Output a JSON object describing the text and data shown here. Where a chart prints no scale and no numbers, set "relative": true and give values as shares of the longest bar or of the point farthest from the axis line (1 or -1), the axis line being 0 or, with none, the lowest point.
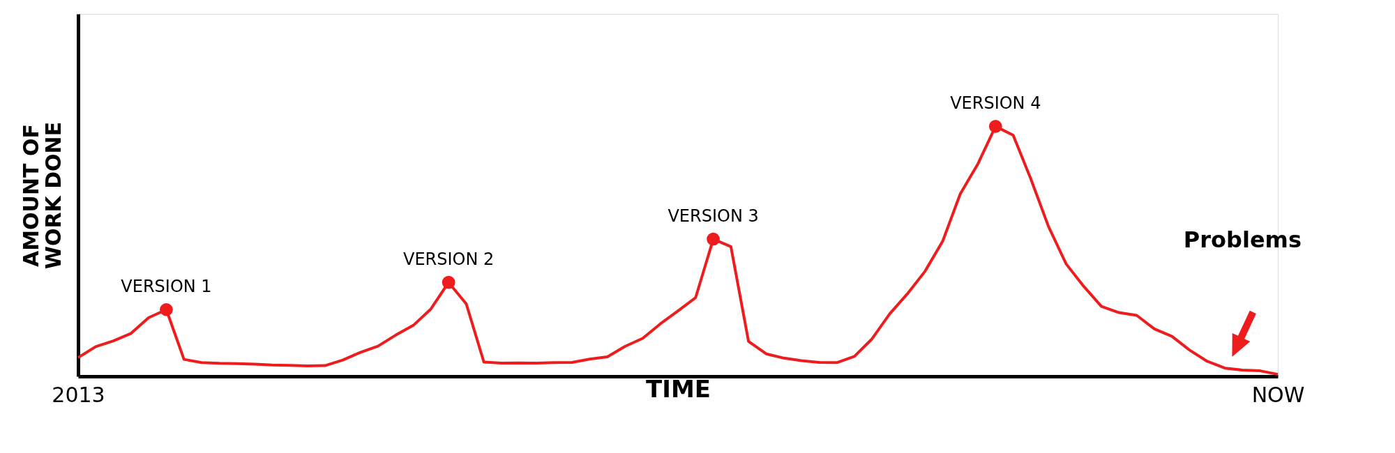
{
  "chart_data": {
    "type": "line",
    "relative": true,
    "xlabel": "TIME",
    "ylabel": "AMOUNT OF WORK DONE",
    "categories": [
      "2013",
      null,
      null,
      null,
      null,
      null,
      null,
      null,
      null,
      null,
      null,
      null,
      null,
      null,
      null,
      null,
      null,
      null,
      null,
      null,
      null,
      null,
      null,
      null,
      null,
      null,
      null,
      null,
      null,
      null,
      null,
      null,
      null,
      null,
      null,
      null,
      null,
      null,
      null,
      null,
      null,
      null,
      null,
      null,
      null,
      null,
      null,
      null,
      null,
      null,
      null,
      null,
      null,
      null,
      null,
      null,
      null,
      null,
      null,
      null,
      null,
      null,
      null,
      null,
      null,
      null,
      null,
      null,
      "NOW"
    ],
    "line_style": "solid",
    "series": [
      {
        "type": "line",
        "marker": "none",
        "color": "#ee1c1c",
        "values": [
          0.075,
          0.119,
          0.142,
          0.172,
          0.235,
          0.267,
          0.068,
          0.055,
          0.052,
          0.051,
          0.049,
          0.045,
          0.044,
          0.042,
          0.043,
          0.065,
          0.096,
          0.121,
          0.165,
          0.204,
          0.27,
          0.376,
          0.29,
          0.057,
          0.053,
          0.054,
          0.053,
          0.055,
          0.056,
          0.069,
          0.078,
          0.12,
          0.152,
          0.21,
          0.262,
          0.315,
          0.549,
          0.519,
          0.14,
          0.09,
          0.073,
          0.063,
          0.056,
          0.055,
          0.08,
          0.15,
          0.25,
          0.33,
          0.42,
          0.54,
          0.73,
          0.85,
          1.0,
          0.965,
          0.79,
          0.6,
          0.45,
          0.36,
          0.28,
          0.255,
          0.244,
          0.19,
          0.16,
          0.105,
          0.06,
          0.033,
          0.025,
          0.022,
          0.008
        ]
      },
      {
        "type": "scatter",
        "marker": "circle",
        "color": "#ee1c1c",
        "values": [
          null,
          null,
          null,
          null,
          null,
          0.267,
          null,
          null,
          null,
          null,
          null,
          null,
          null,
          null,
          null,
          null,
          null,
          null,
          null,
          null,
          null,
          0.376,
          null,
          null,
          null,
          null,
          null,
          null,
          null,
          null,
          null,
          null,
          null,
          null,
          null,
          null,
          0.549,
          null,
          null,
          null,
          null,
          null,
          null,
          null,
          null,
          null,
          null,
          null,
          null,
          null,
          null,
          null,
          1.0,
          null,
          null,
          null,
          null,
          null,
          null,
          null,
          null,
          null,
          null,
          null,
          null,
          null,
          null,
          null,
          null
        ]
      }
    ],
    "annotations": [
      "VERSION 1",
      "VERSION 2",
      "VERSION 3",
      "VERSION 4",
      "Problems"
    ]
  }
}
